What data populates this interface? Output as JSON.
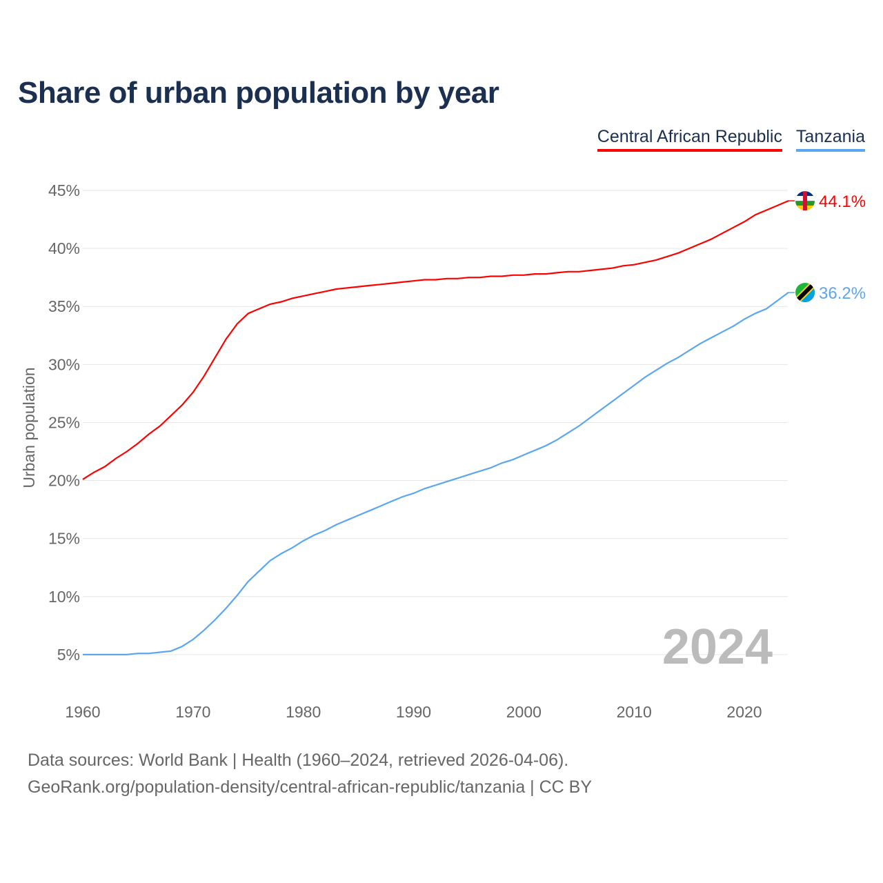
{
  "chart_data": {
    "type": "line",
    "title": "Share of urban population by year",
    "xlabel": "",
    "ylabel": "Urban population",
    "ylim": [
      0,
      45
    ],
    "xlim": [
      1960,
      2024
    ],
    "yticks": [
      "5%",
      "10%",
      "15%",
      "20%",
      "25%",
      "30%",
      "35%",
      "40%",
      "45%"
    ],
    "ytick_values": [
      5,
      10,
      15,
      20,
      25,
      30,
      35,
      40,
      45
    ],
    "xticks": [
      "1960",
      "1970",
      "1980",
      "1990",
      "2000",
      "2010",
      "2020"
    ],
    "xtick_values": [
      1960,
      1970,
      1980,
      1990,
      2000,
      2010,
      2020
    ],
    "grid": true,
    "legend_position": "top-right",
    "year_label": "2024",
    "x": [
      1960,
      1961,
      1962,
      1963,
      1964,
      1965,
      1966,
      1967,
      1968,
      1969,
      1970,
      1971,
      1972,
      1973,
      1974,
      1975,
      1976,
      1977,
      1978,
      1979,
      1980,
      1981,
      1982,
      1983,
      1984,
      1985,
      1986,
      1987,
      1988,
      1989,
      1990,
      1991,
      1992,
      1993,
      1994,
      1995,
      1996,
      1997,
      1998,
      1999,
      2000,
      2001,
      2002,
      2003,
      2004,
      2005,
      2006,
      2007,
      2008,
      2009,
      2010,
      2011,
      2012,
      2013,
      2014,
      2015,
      2016,
      2017,
      2018,
      2019,
      2020,
      2021,
      2022,
      2023,
      2024
    ],
    "series": [
      {
        "name": "Central African Republic",
        "color": "#ff0000",
        "end_label": "44.1%",
        "values": [
          20.1,
          20.7,
          21.2,
          21.9,
          22.5,
          23.2,
          24.0,
          24.7,
          25.6,
          26.5,
          27.6,
          29.0,
          30.6,
          32.2,
          33.5,
          34.4,
          34.8,
          35.2,
          35.4,
          35.7,
          35.9,
          36.1,
          36.3,
          36.5,
          36.6,
          36.7,
          36.8,
          36.9,
          37.0,
          37.1,
          37.2,
          37.3,
          37.3,
          37.4,
          37.4,
          37.5,
          37.5,
          37.6,
          37.6,
          37.7,
          37.7,
          37.8,
          37.8,
          37.9,
          38.0,
          38.0,
          38.1,
          38.2,
          38.3,
          38.5,
          38.6,
          38.8,
          39.0,
          39.3,
          39.6,
          40.0,
          40.4,
          40.8,
          41.3,
          41.8,
          42.3,
          42.9,
          43.3,
          43.7,
          44.1
        ]
      },
      {
        "name": "Tanzania",
        "color": "#5aa6f0",
        "end_label": "36.2%",
        "values": [
          5.0,
          5.0,
          5.0,
          5.0,
          5.0,
          5.1,
          5.1,
          5.2,
          5.3,
          5.7,
          6.3,
          7.1,
          8.0,
          9.0,
          10.1,
          11.3,
          12.2,
          13.1,
          13.7,
          14.2,
          14.8,
          15.3,
          15.7,
          16.2,
          16.6,
          17.0,
          17.4,
          17.8,
          18.2,
          18.6,
          18.9,
          19.3,
          19.6,
          19.9,
          20.2,
          20.5,
          20.8,
          21.1,
          21.5,
          21.8,
          22.2,
          22.6,
          23.0,
          23.5,
          24.1,
          24.7,
          25.4,
          26.1,
          26.8,
          27.5,
          28.2,
          28.9,
          29.5,
          30.1,
          30.6,
          31.2,
          31.8,
          32.3,
          32.8,
          33.3,
          33.9,
          34.4,
          34.8,
          35.5,
          36.2
        ]
      }
    ]
  },
  "footer": {
    "line1": "Data sources: World Bank | Health (1960–2024, retrieved 2026-04-06).",
    "line2": "GeoRank.org/population-density/central-african-republic/tanzania | CC BY"
  }
}
